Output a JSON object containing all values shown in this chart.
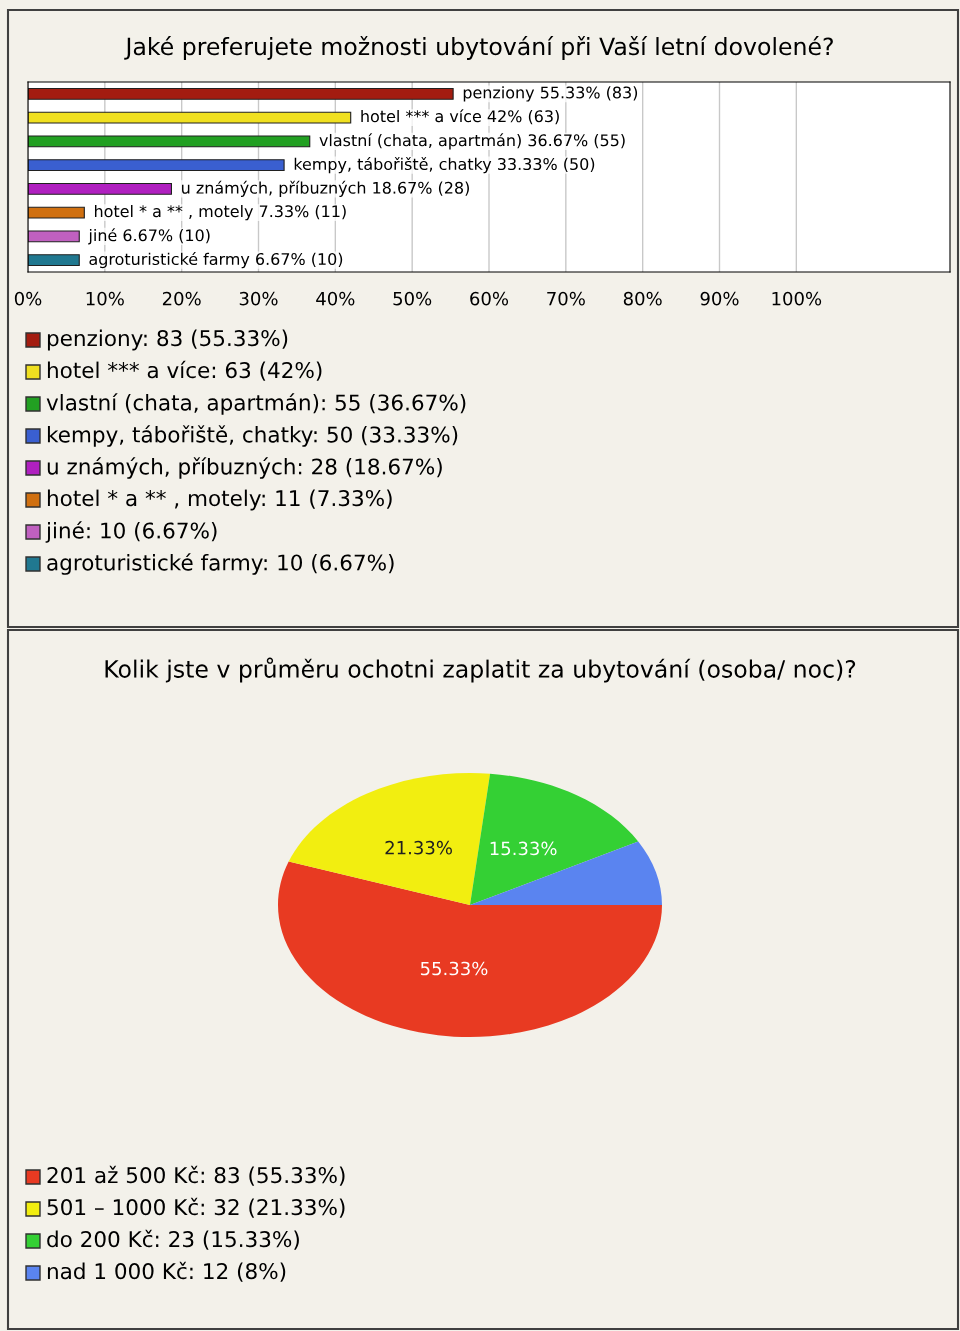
{
  "chart_data": [
    {
      "type": "bar",
      "orientation": "horizontal",
      "title": "Jaké preferujete možnosti ubytování při Vaší letní dovolené?",
      "categories": [
        null,
        null,
        null,
        null,
        null,
        null,
        null,
        null
      ],
      "values": [
        55.33,
        42,
        36.67,
        33.33,
        18.67,
        7.33,
        6.67,
        6.67
      ],
      "colors": [
        "#a31c10",
        "#f0e020",
        "#22a022",
        "#3a5fd0",
        "#b020c0",
        "#d07010",
        "#c060c0",
        "#207890"
      ],
      "value_labels": [
        "penziony 55.33% (83)",
        "hotel *** a více 42% (63)",
        "vlastní (chata, apartmán) 36.67% (55)",
        "kempy, tábořiště, chatky 33.33% (50)",
        "u známých, příbuzných 18.67% (28)",
        "hotel * a ** , motely 7.33% (11)",
        "jiné 6.67% (10)",
        "agroturistické farmy 6.67% (10)"
      ],
      "annotations": [
        "penziony: 83 (55.33%)",
        "hotel *** a více: 63 (42%)",
        "vlastní (chata, apartmán): 55 (36.67%)",
        "kempy, tábořiště, chatky: 50 (33.33%)",
        "u známých, příbuzných: 28 (18.67%)",
        "hotel * a ** , motely: 11 (7.33%)",
        "jiné: 10 (6.67%)",
        "agroturistické farmy: 10 (6.67%)"
      ],
      "xlim": [
        0,
        120
      ],
      "xticks": [
        {
          "value": 0,
          "label": "0%"
        },
        {
          "value": 10,
          "label": "10%"
        },
        {
          "value": 20,
          "label": "20%"
        },
        {
          "value": 30,
          "label": "30%"
        },
        {
          "value": 40,
          "label": "40%"
        },
        {
          "value": 50,
          "label": "50%"
        },
        {
          "value": 60,
          "label": "60%"
        },
        {
          "value": 70,
          "label": "70%"
        },
        {
          "value": 80,
          "label": "80%"
        },
        {
          "value": 90,
          "label": "90%"
        },
        {
          "value": 100,
          "label": "100%"
        }
      ],
      "grid": "x"
    },
    {
      "type": "pie",
      "title": "Kolik jste v průměru ochotni zaplatit za ubytování (osoba/ noc)?",
      "categories": [
        null,
        null,
        null,
        null
      ],
      "values": [
        55.33,
        21.33,
        15.33,
        8
      ],
      "colors": [
        "#e83a22",
        "#f2ee10",
        "#34d034",
        "#5a84f0"
      ],
      "value_labels": [
        "55.33%",
        "21.33%",
        "15.33%",
        null
      ],
      "annotations": [
        "201 až 500 Kč: 83 (55.33%)",
        "501 – 1000 Kč: 32 (21.33%)",
        "do 200 Kč: 23 (15.33%)",
        "nad 1 000 Kč: 12 (8%)"
      ]
    }
  ]
}
